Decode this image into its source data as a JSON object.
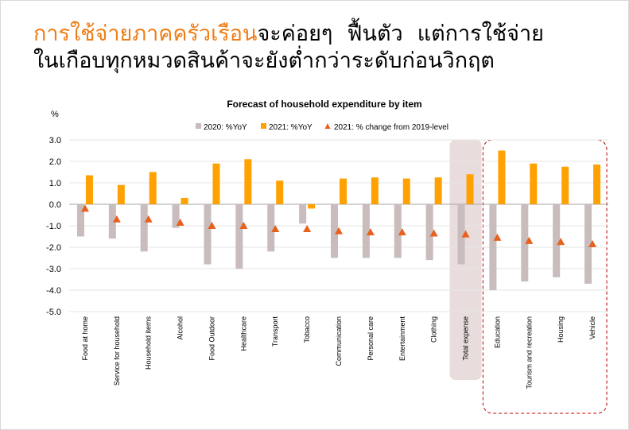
{
  "headline": {
    "highlight": "การใช้จ่ายภาคครัวเรือน",
    "line1_part1": "จะค่อยๆ",
    "line1_part2": "ฟื้นตัว",
    "line1_part3": "แต่การใช้จ่าย",
    "line2": "ในเกือบทุกหมวดสินค้าจะยังต่ำกว่าระดับก่อนวิกฤต"
  },
  "colors": {
    "accent": "#f07d16",
    "series_2020": "#c8bcbc",
    "series_2021": "#ffa100",
    "series_change": "#e8601c",
    "highlight_box": "#e8dcdc",
    "dashed_box": "#c00000"
  },
  "chart_data": {
    "type": "bar",
    "title": "Forecast of household expenditure by item",
    "ylabel": "%",
    "ylim": [
      -5.0,
      3.0
    ],
    "yticks": [
      "3.0",
      "2.0",
      "1.0",
      "0.0",
      "-1.0",
      "-2.0",
      "-3.0",
      "-4.0",
      "-5.0"
    ],
    "grid": true,
    "legend_position": "top",
    "categories": [
      "Food at home",
      "Service for household",
      "Household items",
      "Alcohol",
      "Food Outdoor",
      "Healthcare",
      "Transport",
      "Tobacco",
      "Communication",
      "Personal care",
      "Entertainment",
      "Clothing",
      "Total expense",
      "Education",
      "Tourism and recreation",
      "Housing",
      "Vehicle"
    ],
    "series": [
      {
        "name": "2020: %YoY",
        "type": "bar",
        "values": [
          -1.5,
          -1.6,
          -2.2,
          -1.1,
          -2.8,
          -3.0,
          -2.2,
          -0.9,
          -2.5,
          -2.5,
          -2.5,
          -2.6,
          -2.8,
          -4.0,
          -3.6,
          -3.4,
          -3.7
        ]
      },
      {
        "name": "2021: %YoY",
        "type": "bar",
        "values": [
          1.35,
          0.9,
          1.5,
          0.3,
          1.9,
          2.1,
          1.1,
          -0.2,
          1.2,
          1.25,
          1.2,
          1.25,
          1.4,
          2.5,
          1.9,
          1.75,
          1.85
        ]
      },
      {
        "name": "2021: % change from 2019-level",
        "type": "marker",
        "values": [
          -0.2,
          -0.7,
          -0.7,
          -0.85,
          -1.0,
          -1.0,
          -1.15,
          -1.15,
          -1.25,
          -1.3,
          -1.3,
          -1.35,
          -1.4,
          -1.55,
          -1.7,
          -1.75,
          -1.85
        ]
      }
    ],
    "highlighted_category": "Total expense",
    "boxed_categories": [
      "Education",
      "Tourism and recreation",
      "Housing",
      "Vehicle"
    ]
  }
}
